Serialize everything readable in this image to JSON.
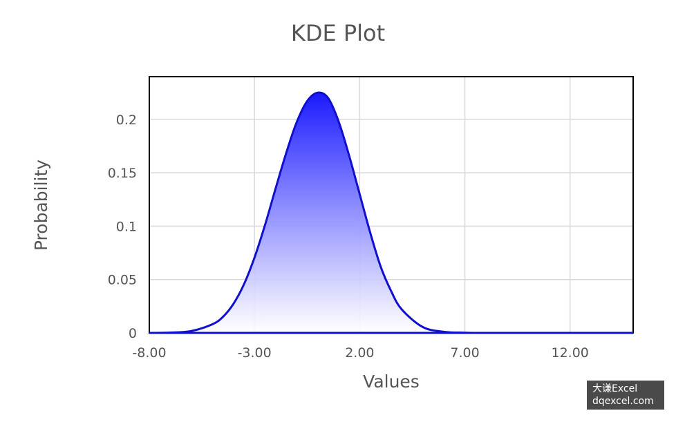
{
  "chart_data": {
    "type": "area",
    "title": "KDE Plot",
    "xlabel": "Values",
    "ylabel": "Probability",
    "xlim": [
      -8,
      15
    ],
    "ylim": [
      0,
      0.24
    ],
    "x_ticks": [
      "-8.00",
      "-3.00",
      "2.00",
      "7.00",
      "12.00"
    ],
    "x_tick_values": [
      -8,
      -3,
      2,
      7,
      12
    ],
    "y_ticks": [
      "0",
      "0.05",
      "0.1",
      "0.15",
      "0.2"
    ],
    "y_tick_values": [
      0,
      0.05,
      0.1,
      0.15,
      0.2
    ],
    "grid": true,
    "legend": "none",
    "series": [
      {
        "line_color": "#1010cc",
        "fill_top_color": "#1a1aff",
        "fill_bottom_color": "#ffffff",
        "x": [
          -8,
          -7,
          -6,
          -5,
          -4.5,
          -4,
          -3.5,
          -3,
          -2.5,
          -2,
          -1.5,
          -1,
          -0.5,
          0,
          0.5,
          1,
          1.5,
          2,
          2.5,
          3,
          3.5,
          4,
          5,
          6,
          7,
          8,
          10,
          12,
          15
        ],
        "y": [
          0.0,
          0.0003,
          0.0018,
          0.0081,
          0.015,
          0.0272,
          0.0455,
          0.0705,
          0.101,
          0.135,
          0.168,
          0.197,
          0.217,
          0.225,
          0.22,
          0.198,
          0.166,
          0.13,
          0.094,
          0.062,
          0.039,
          0.022,
          0.0055,
          0.0011,
          0.0002,
          0.0,
          0.0,
          0.0,
          0.0
        ]
      }
    ]
  },
  "watermark": {
    "line1": "大谦Excel",
    "line2": "dqexcel.com"
  }
}
